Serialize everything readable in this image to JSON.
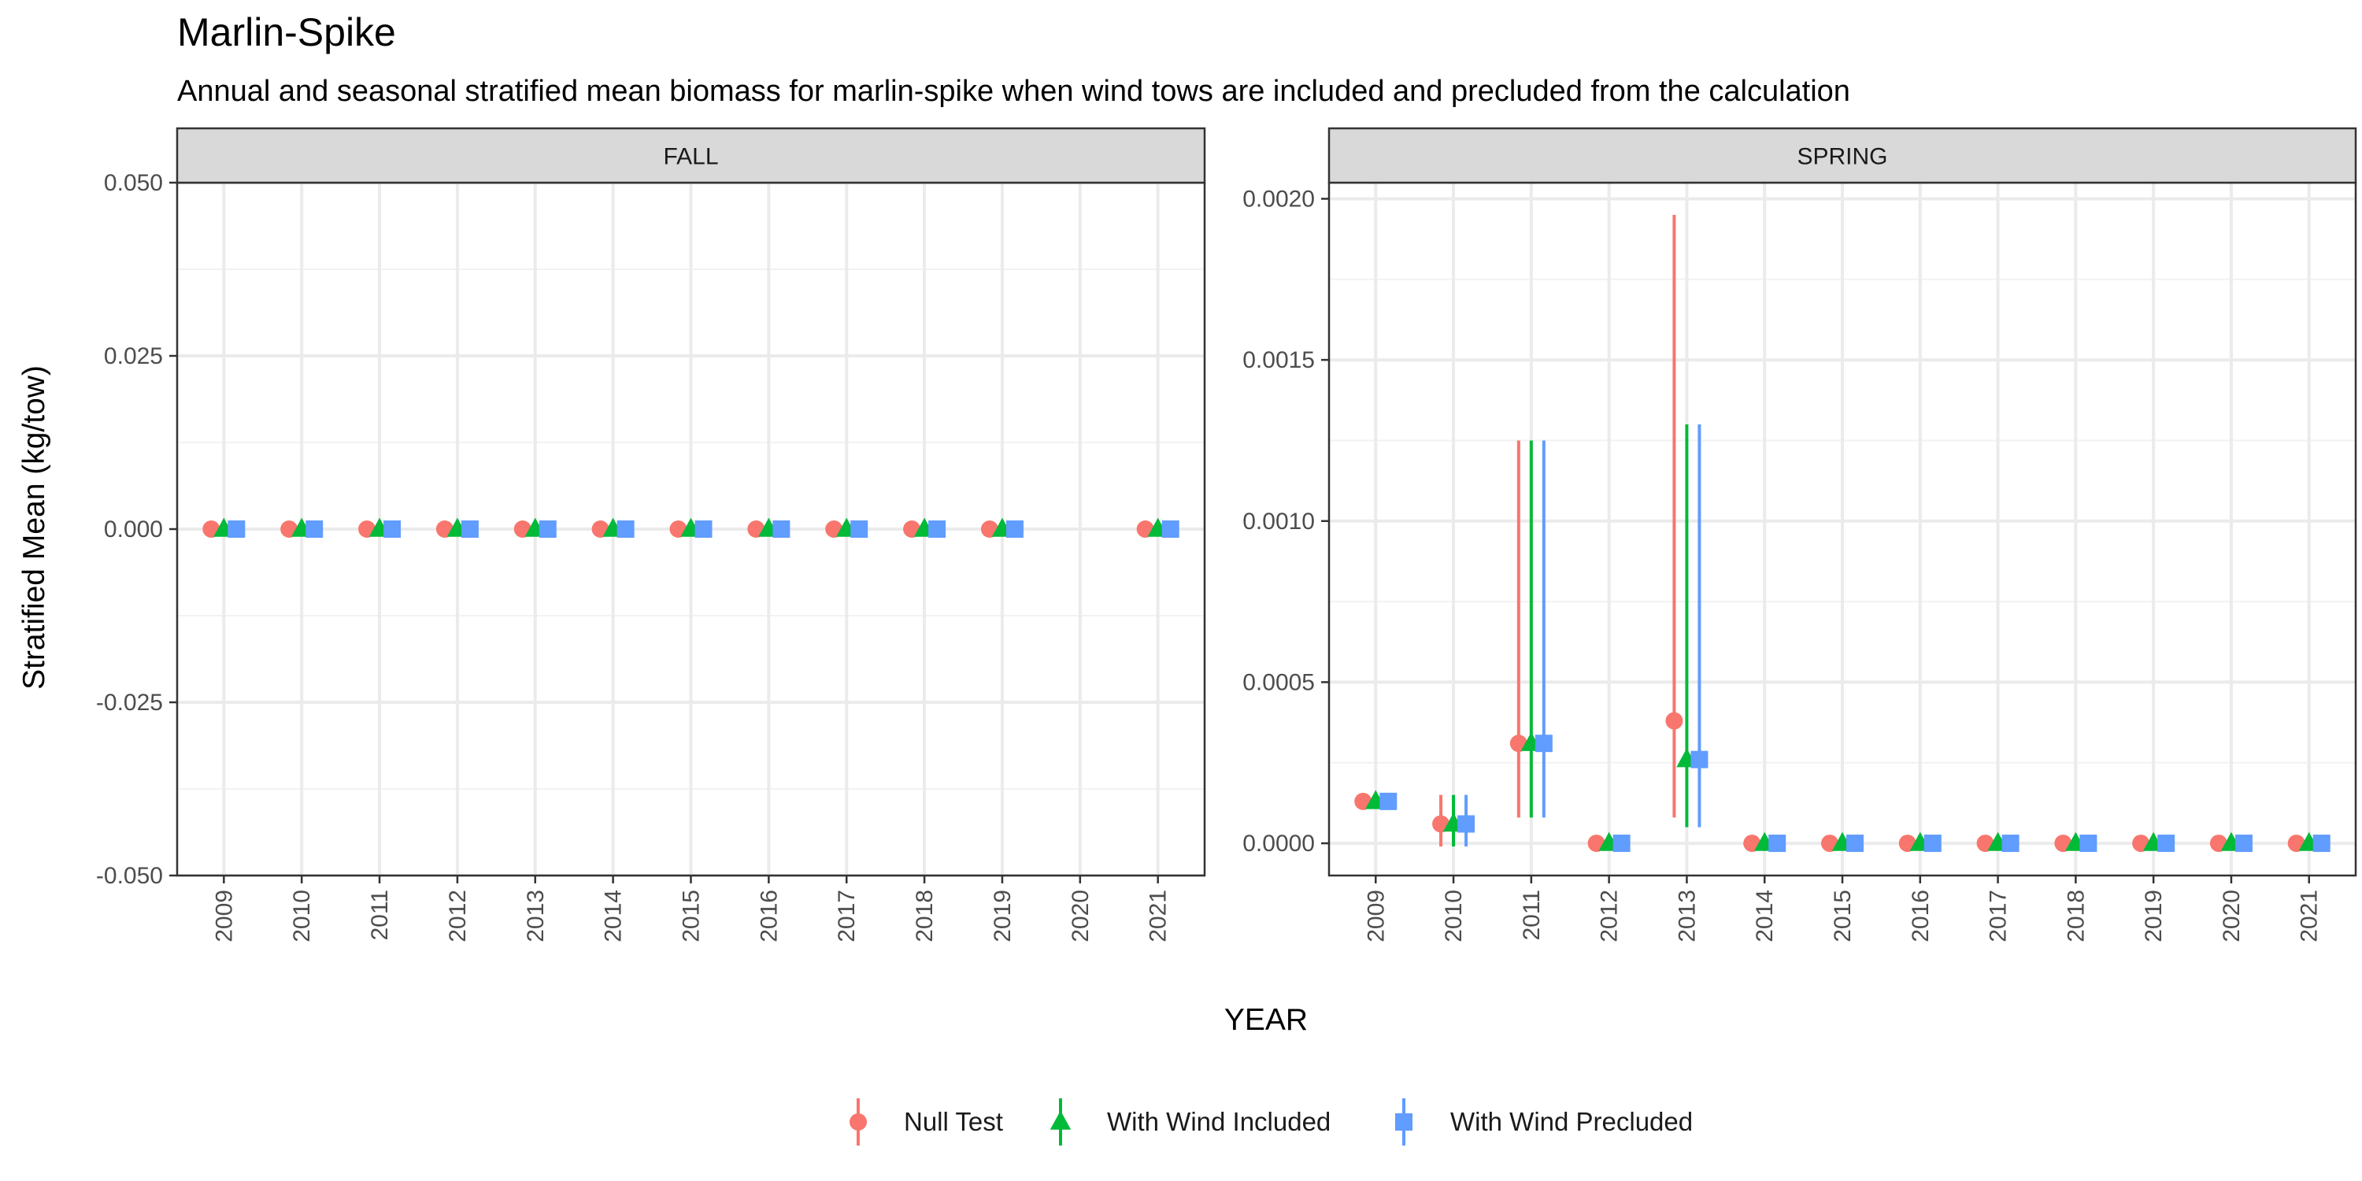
{
  "chart_data": {
    "type": "scatter",
    "title": "Marlin-Spike",
    "subtitle": "Annual and seasonal stratified mean biomass for marlin-spike when wind tows are included and precluded from the calculation",
    "xlabel": "YEAR",
    "ylabel": "Stratified Mean (kg/tow)",
    "legend_position": "bottom",
    "grid": true,
    "series": [
      {
        "name": "Null Test",
        "color": "#F8766D",
        "marker": "circle"
      },
      {
        "name": "With Wind Included",
        "color": "#00BA38",
        "marker": "triangle"
      },
      {
        "name": "With Wind Precluded",
        "color": "#619CFF",
        "marker": "square"
      }
    ],
    "panels": [
      {
        "label": "FALL",
        "years": [
          "2009",
          "2010",
          "2011",
          "2012",
          "2013",
          "2014",
          "2015",
          "2016",
          "2017",
          "2018",
          "2019",
          "2020",
          "2021"
        ],
        "ylim": [
          -0.05,
          0.05
        ],
        "yticks": [
          "-0.050",
          "-0.025",
          "0.000",
          "0.025",
          "0.050"
        ],
        "ytick_values": [
          -0.05,
          -0.025,
          0,
          0.025,
          0.05
        ],
        "points": [
          {
            "year": "2009",
            "values": [
              0,
              0,
              0
            ],
            "lower": [
              0,
              0,
              0
            ],
            "upper": [
              0,
              0,
              0
            ]
          },
          {
            "year": "2010",
            "values": [
              0,
              0,
              0
            ],
            "lower": [
              0,
              0,
              0
            ],
            "upper": [
              0,
              0,
              0
            ]
          },
          {
            "year": "2011",
            "values": [
              0,
              0,
              0
            ],
            "lower": [
              0,
              0,
              0
            ],
            "upper": [
              0,
              0,
              0
            ]
          },
          {
            "year": "2012",
            "values": [
              0,
              0,
              0
            ],
            "lower": [
              0,
              0,
              0
            ],
            "upper": [
              0,
              0,
              0
            ]
          },
          {
            "year": "2013",
            "values": [
              0,
              0,
              0
            ],
            "lower": [
              0,
              0,
              0
            ],
            "upper": [
              0,
              0,
              0
            ]
          },
          {
            "year": "2014",
            "values": [
              0,
              0,
              0
            ],
            "lower": [
              0,
              0,
              0
            ],
            "upper": [
              0,
              0,
              0
            ]
          },
          {
            "year": "2015",
            "values": [
              0,
              0,
              0
            ],
            "lower": [
              0,
              0,
              0
            ],
            "upper": [
              0,
              0,
              0
            ]
          },
          {
            "year": "2016",
            "values": [
              0,
              0,
              0
            ],
            "lower": [
              0,
              0,
              0
            ],
            "upper": [
              0,
              0,
              0
            ]
          },
          {
            "year": "2017",
            "values": [
              0,
              0,
              0
            ],
            "lower": [
              0,
              0,
              0
            ],
            "upper": [
              0,
              0,
              0
            ]
          },
          {
            "year": "2018",
            "values": [
              0,
              0,
              0
            ],
            "lower": [
              0,
              0,
              0
            ],
            "upper": [
              0,
              0,
              0
            ]
          },
          {
            "year": "2019",
            "values": [
              0,
              0,
              0
            ],
            "lower": [
              0,
              0,
              0
            ],
            "upper": [
              0,
              0,
              0
            ]
          },
          {
            "year": "2021",
            "values": [
              0,
              0,
              0
            ],
            "lower": [
              0,
              0,
              0
            ],
            "upper": [
              0,
              0,
              0
            ]
          }
        ]
      },
      {
        "label": "SPRING",
        "years": [
          "2009",
          "2010",
          "2011",
          "2012",
          "2013",
          "2014",
          "2015",
          "2016",
          "2017",
          "2018",
          "2019",
          "2020",
          "2021"
        ],
        "ylim": [
          -0.0001,
          0.00205
        ],
        "yticks": [
          "0.0000",
          "0.0005",
          "0.0010",
          "0.0015",
          "0.0020"
        ],
        "ytick_values": [
          0,
          0.0005,
          0.001,
          0.0015,
          0.002
        ],
        "points": [
          {
            "year": "2009",
            "values": [
              0.00013,
              0.00013,
              0.00013
            ],
            "lower": [
              0.00013,
              0.00013,
              0.00013
            ],
            "upper": [
              0.00013,
              0.00013,
              0.00013
            ]
          },
          {
            "year": "2010",
            "values": [
              6e-05,
              6e-05,
              6e-05
            ],
            "lower": [
              -1e-05,
              -1e-05,
              -1e-05
            ],
            "upper": [
              0.00015,
              0.00015,
              0.00015
            ]
          },
          {
            "year": "2011",
            "values": [
              0.00031,
              0.00031,
              0.00031
            ],
            "lower": [
              8e-05,
              8e-05,
              8e-05
            ],
            "upper": [
              0.00125,
              0.00125,
              0.00125
            ]
          },
          {
            "year": "2012",
            "values": [
              0,
              0,
              0
            ],
            "lower": [
              0,
              0,
              0
            ],
            "upper": [
              0,
              0,
              0
            ]
          },
          {
            "year": "2013",
            "values": [
              0.00038,
              0.00026,
              0.00026
            ],
            "lower": [
              8e-05,
              5e-05,
              5e-05
            ],
            "upper": [
              0.00195,
              0.0013,
              0.0013
            ]
          },
          {
            "year": "2014",
            "values": [
              0,
              0,
              0
            ],
            "lower": [
              0,
              0,
              0
            ],
            "upper": [
              0,
              0,
              0
            ]
          },
          {
            "year": "2015",
            "values": [
              0,
              0,
              0
            ],
            "lower": [
              0,
              0,
              0
            ],
            "upper": [
              0,
              0,
              0
            ]
          },
          {
            "year": "2016",
            "values": [
              0,
              0,
              0
            ],
            "lower": [
              0,
              0,
              0
            ],
            "upper": [
              0,
              0,
              0
            ]
          },
          {
            "year": "2017",
            "values": [
              0,
              0,
              0
            ],
            "lower": [
              0,
              0,
              0
            ],
            "upper": [
              0,
              0,
              0
            ]
          },
          {
            "year": "2018",
            "values": [
              0,
              0,
              0
            ],
            "lower": [
              0,
              0,
              0
            ],
            "upper": [
              0,
              0,
              0
            ]
          },
          {
            "year": "2019",
            "values": [
              0,
              0,
              0
            ],
            "lower": [
              0,
              0,
              0
            ],
            "upper": [
              0,
              0,
              0
            ]
          },
          {
            "year": "2020",
            "values": [
              0,
              0,
              0
            ],
            "lower": [
              0,
              0,
              0
            ],
            "upper": [
              0,
              0,
              0
            ]
          },
          {
            "year": "2021",
            "values": [
              0,
              0,
              0
            ],
            "lower": [
              0,
              0,
              0
            ],
            "upper": [
              0,
              0,
              0
            ]
          }
        ]
      }
    ]
  }
}
